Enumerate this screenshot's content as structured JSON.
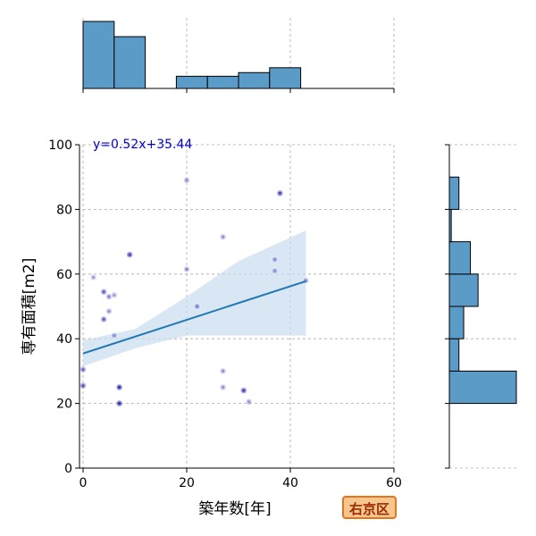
{
  "badge_label": "右京区",
  "chart_data": {
    "type": "scatter",
    "xlabel": "築年数[年]",
    "ylabel": "専有面積[m2]",
    "xlim": [
      0,
      60
    ],
    "ylim": [
      0,
      100
    ],
    "x_ticks": [
      0,
      20,
      40,
      60
    ],
    "y_ticks": [
      0,
      20,
      40,
      60,
      80,
      100
    ],
    "grid": true,
    "regression": {
      "label": "y=0.52x+35.44",
      "slope": 0.52,
      "intercept": 35.44,
      "x_range": [
        0,
        43
      ],
      "ci_lower": [
        [
          0,
          31.5
        ],
        [
          10,
          37
        ],
        [
          20,
          41
        ],
        [
          30,
          41
        ],
        [
          43,
          41
        ]
      ],
      "ci_upper": [
        [
          0,
          39.5
        ],
        [
          10,
          43
        ],
        [
          20,
          53
        ],
        [
          30,
          64
        ],
        [
          43,
          73.5
        ]
      ]
    },
    "points": [
      {
        "x": 0,
        "y": 30.5,
        "a": 0.5
      },
      {
        "x": 0,
        "y": 25.5,
        "a": 0.6
      },
      {
        "x": 2,
        "y": 59,
        "a": 0.3
      },
      {
        "x": 4,
        "y": 54.5,
        "a": 0.55
      },
      {
        "x": 4,
        "y": 46,
        "a": 0.55
      },
      {
        "x": 5,
        "y": 53,
        "a": 0.4
      },
      {
        "x": 5,
        "y": 48.5,
        "a": 0.35
      },
      {
        "x": 6,
        "y": 53.5,
        "a": 0.3
      },
      {
        "x": 6,
        "y": 41,
        "a": 0.3
      },
      {
        "x": 7,
        "y": 25,
        "a": 0.8
      },
      {
        "x": 7,
        "y": 20,
        "a": 0.8
      },
      {
        "x": 9,
        "y": 66,
        "a": 0.7
      },
      {
        "x": 20,
        "y": 89,
        "a": 0.35
      },
      {
        "x": 20,
        "y": 61.5,
        "a": 0.35
      },
      {
        "x": 22,
        "y": 50,
        "a": 0.35
      },
      {
        "x": 27,
        "y": 71.5,
        "a": 0.35
      },
      {
        "x": 27,
        "y": 30,
        "a": 0.35
      },
      {
        "x": 27,
        "y": 25,
        "a": 0.35
      },
      {
        "x": 31,
        "y": 24,
        "a": 0.7
      },
      {
        "x": 32,
        "y": 20.5,
        "a": 0.35
      },
      {
        "x": 37,
        "y": 64.5,
        "a": 0.3
      },
      {
        "x": 37,
        "y": 61,
        "a": 0.3
      },
      {
        "x": 38,
        "y": 85,
        "a": 0.7
      },
      {
        "x": 43,
        "y": 58,
        "a": 0.35
      }
    ],
    "x_hist": {
      "bins": [
        [
          0,
          6
        ],
        [
          6,
          12
        ],
        [
          12,
          18
        ],
        [
          18,
          24
        ],
        [
          24,
          30
        ],
        [
          30,
          36
        ],
        [
          36,
          42
        ]
      ],
      "counts": [
        11,
        8.5,
        0,
        2,
        2,
        2.6,
        3.4
      ],
      "max": 11
    },
    "y_hist": {
      "bins": [
        [
          20,
          30
        ],
        [
          30,
          40
        ],
        [
          40,
          50
        ],
        [
          50,
          60
        ],
        [
          60,
          70
        ],
        [
          70,
          80
        ],
        [
          80,
          90
        ]
      ],
      "counts": [
        7,
        1,
        1.5,
        3,
        2.2,
        0.2,
        1
      ],
      "max": 7
    },
    "colors": {
      "point": "#1a1aa8",
      "line": "#1f77b4",
      "band": "#c9dbee",
      "hist_fill": "#5a9bc8",
      "hist_edge": "#000000",
      "grid": "#aaaaaa",
      "annotation": "#0000cc"
    }
  }
}
